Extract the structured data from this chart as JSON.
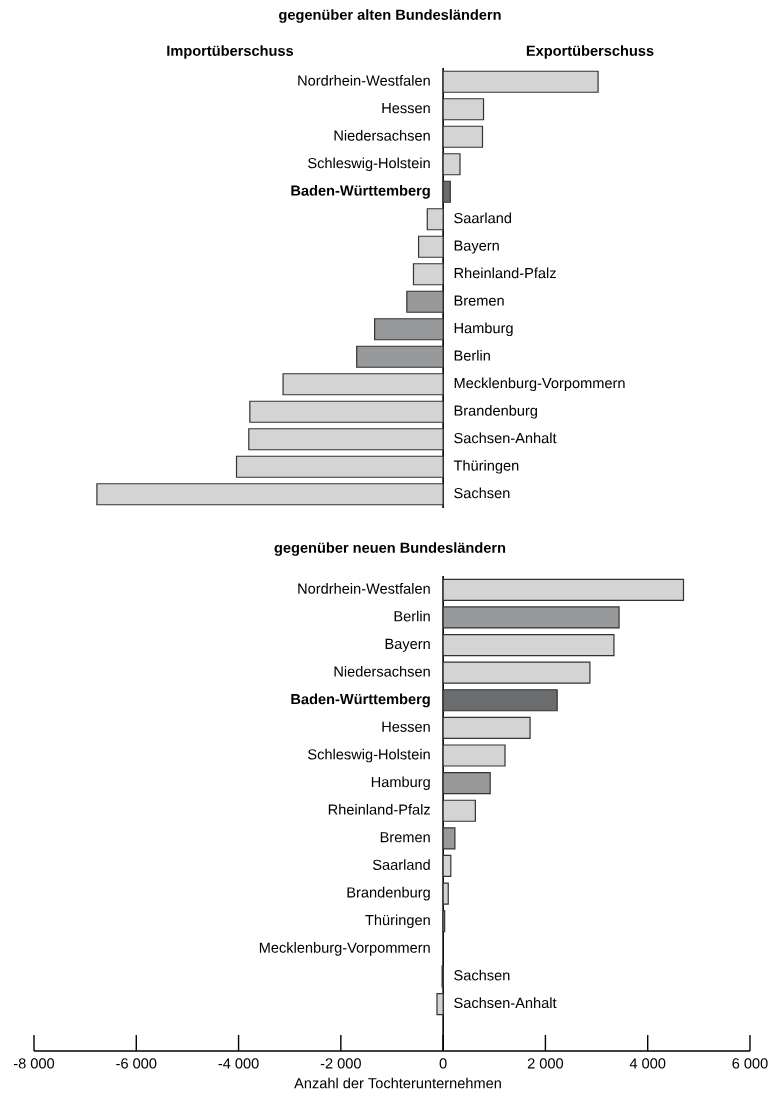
{
  "chart_data": [
    {
      "type": "bar",
      "orientation": "horizontal",
      "title": "gegenüber alten Bundesländern",
      "annotations": [
        "Importüberschuss",
        "Exportüberschuss"
      ],
      "categories": [
        "Nordrhein-Westfalen",
        "Hessen",
        "Niedersachsen",
        "Schleswig-Holstein",
        "**Baden-Württemberg**",
        "Saarland",
        "Bayern",
        "Rheinland-Pfalz",
        "Bremen",
        "Hamburg",
        "Berlin",
        "Mecklenburg-Vorpommern",
        "Brandenburg",
        "Sachsen-Anhalt",
        "Thüringen",
        "Sachsen"
      ],
      "values": [
        3030,
        790,
        770,
        330,
        140,
        -310,
        -480,
        -580,
        -710,
        -1340,
        -1690,
        -3130,
        -3780,
        -3800,
        -4040,
        -6770
      ],
      "colors": [
        "#d4d4d4",
        "#d4d4d4",
        "#d4d4d4",
        "#d4d4d4",
        "#6b6c6e",
        "#d4d4d4",
        "#d4d4d4",
        "#d4d4d4",
        "#98999b",
        "#98999b",
        "#98999b",
        "#d4d4d4",
        "#d4d4d4",
        "#d4d4d4",
        "#d4d4d4",
        "#d4d4d4"
      ],
      "xlim": [
        -8000,
        6000
      ]
    },
    {
      "type": "bar",
      "orientation": "horizontal",
      "title": "gegenüber neuen Bundesländern",
      "xlabel": "Anzahl der Tochterunternehmen",
      "categories": [
        "Nordrhein-Westfalen",
        "Berlin",
        "Bayern",
        "Niedersachsen",
        "**Baden-Württemberg**",
        "Hessen",
        "Schleswig-Holstein",
        "Hamburg",
        "Rheinland-Pfalz",
        "Bremen",
        "Saarland",
        "Brandenburg",
        "Thüringen",
        "Mecklenburg-Vorpommern",
        "Sachsen",
        "Sachsen-Anhalt"
      ],
      "values": [
        4700,
        3440,
        3340,
        2870,
        2230,
        1700,
        1210,
        920,
        630,
        230,
        150,
        100,
        30,
        0,
        -20,
        -120
      ],
      "colors": [
        "#d4d4d4",
        "#98999b",
        "#d4d4d4",
        "#d4d4d4",
        "#6b6c6e",
        "#d4d4d4",
        "#d4d4d4",
        "#98999b",
        "#d4d4d4",
        "#98999b",
        "#d4d4d4",
        "#d4d4d4",
        "#d4d4d4",
        "#d4d4d4",
        "#d4d4d4",
        "#d4d4d4"
      ],
      "xlim": [
        -8000,
        6000
      ],
      "xticks": [
        {
          "value": -8000,
          "label": "-8 000"
        },
        {
          "value": -6000,
          "label": "-6 000"
        },
        {
          "value": -4000,
          "label": "-4 000"
        },
        {
          "value": -2000,
          "label": "-2 000"
        },
        0,
        {
          "value": 2000,
          "label": "2 000"
        },
        {
          "value": 4000,
          "label": "4 000"
        },
        {
          "value": 6000,
          "label": "6 000"
        }
      ]
    }
  ]
}
